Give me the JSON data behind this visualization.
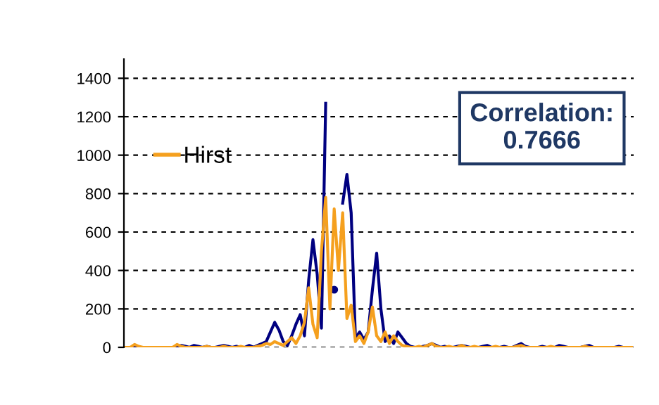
{
  "chart_data": {
    "type": "line",
    "categories": [
      null,
      null,
      null,
      null,
      null,
      null,
      null,
      null,
      null,
      null,
      null,
      null,
      null,
      null,
      null,
      null,
      null,
      null,
      null,
      null,
      null,
      null,
      null,
      null,
      null,
      null,
      null,
      null,
      null,
      null,
      null,
      null,
      null,
      null,
      null,
      null,
      null,
      null,
      null,
      null,
      null,
      null,
      null,
      null,
      null,
      null,
      null,
      null,
      null,
      null,
      null,
      null,
      null,
      null,
      null,
      null,
      null,
      null,
      null,
      null,
      null,
      null,
      null,
      null,
      null,
      null,
      null,
      null,
      null,
      null,
      null,
      null,
      null,
      null,
      null,
      null,
      null,
      null,
      null,
      null,
      null,
      null,
      null,
      null,
      null,
      null,
      null,
      null,
      null,
      null,
      null,
      null,
      null,
      null,
      null,
      null,
      null,
      null,
      null,
      null,
      null,
      null,
      null,
      null,
      null,
      null,
      null,
      null,
      null,
      null,
      null,
      null,
      null,
      null,
      null,
      null,
      null,
      null,
      null,
      null
    ],
    "series": [
      {
        "color": "#000080",
        "values": [
          0,
          0,
          0,
          0,
          0,
          0,
          0,
          0,
          0,
          0,
          0,
          0,
          5,
          10,
          5,
          0,
          10,
          5,
          0,
          5,
          0,
          0,
          5,
          10,
          5,
          0,
          5,
          0,
          0,
          10,
          0,
          10,
          20,
          30,
          80,
          130,
          90,
          30,
          10,
          60,
          120,
          170,
          60,
          350,
          560,
          380,
          100,
          1270,
          null,
          300,
          null,
          750,
          900,
          700,
          50,
          80,
          40,
          80,
          300,
          490,
          200,
          30,
          60,
          20,
          80,
          50,
          20,
          5,
          0,
          0,
          5,
          10,
          20,
          10,
          0,
          5,
          0,
          0,
          5,
          10,
          5,
          0,
          0,
          0,
          5,
          10,
          0,
          0,
          0,
          5,
          0,
          0,
          10,
          20,
          5,
          0,
          0,
          0,
          5,
          0,
          0,
          0,
          10,
          5,
          0,
          0,
          0,
          0,
          5,
          10,
          0,
          0,
          0,
          0,
          0,
          0,
          5,
          0,
          0,
          0
        ]
      },
      {
        "name": "Hirst",
        "color": "#f5a01e",
        "values": [
          0,
          0,
          15,
          5,
          0,
          0,
          0,
          0,
          0,
          0,
          0,
          0,
          15,
          5,
          0,
          0,
          0,
          0,
          0,
          5,
          0,
          0,
          0,
          5,
          0,
          0,
          0,
          5,
          0,
          0,
          0,
          5,
          10,
          20,
          15,
          30,
          20,
          10,
          30,
          50,
          20,
          60,
          130,
          310,
          120,
          50,
          500,
          780,
          200,
          720,
          400,
          700,
          150,
          220,
          30,
          60,
          20,
          80,
          210,
          60,
          30,
          80,
          20,
          60,
          30,
          10,
          5,
          0,
          0,
          5,
          0,
          10,
          20,
          5,
          0,
          0,
          5,
          0,
          0,
          10,
          0,
          0,
          5,
          0,
          0,
          0,
          0,
          5,
          0,
          0,
          0,
          0,
          5,
          10,
          0,
          0,
          0,
          0,
          0,
          0,
          5,
          0,
          0,
          0,
          0,
          0,
          0,
          0,
          5,
          0,
          0,
          0,
          0,
          0,
          0,
          0,
          0,
          0,
          0,
          0
        ]
      }
    ],
    "ylim": [
      0,
      1500
    ],
    "yticks": [
      0,
      200,
      400,
      600,
      800,
      1000,
      1200,
      1400
    ],
    "grid": "y",
    "tick_labels": "y",
    "legend": "left",
    "annotations": [
      "Correlation:\n0.7666"
    ]
  }
}
